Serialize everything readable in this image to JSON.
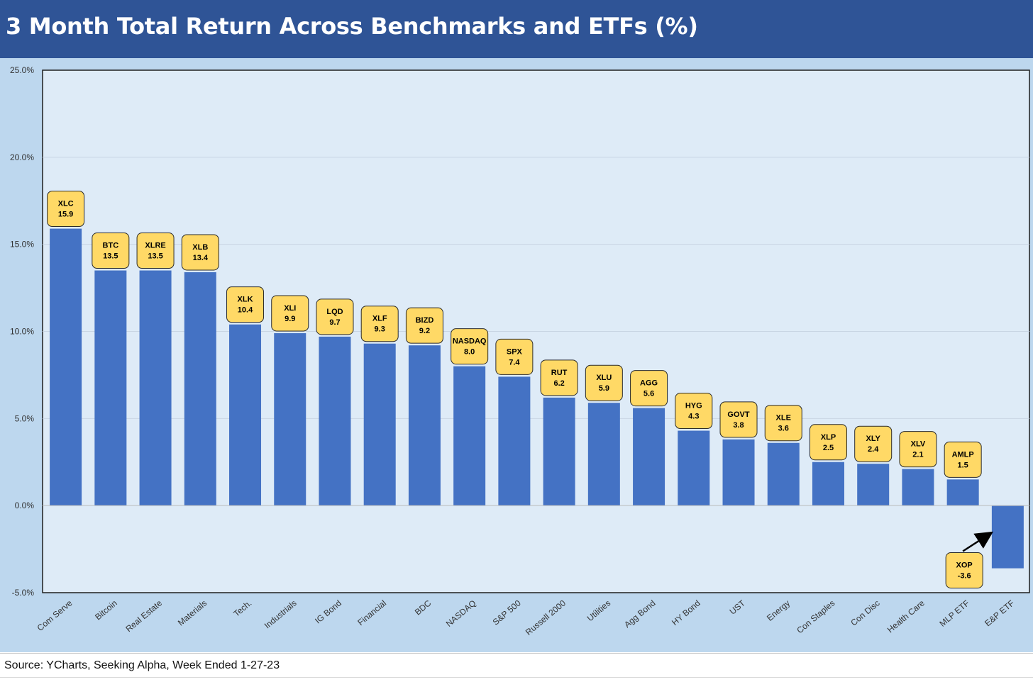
{
  "header": {
    "title": "3 Month Total Return Across Benchmarks and ETFs (%)"
  },
  "footer": {
    "source": "Source: YCharts, Seeking Alpha, Week Ended 1-27-23"
  },
  "colors": {
    "header": "#2f5496",
    "bar": "#4472c4",
    "label_box": "#ffd966",
    "plot_bg": "#deebf7",
    "outer_bg": "#bdd7ee"
  },
  "chart_data": {
    "type": "bar",
    "title": "3 Month Total Return Across Benchmarks and ETFs (%)",
    "categories": [
      "Com Serve",
      "Bitcoin",
      "Real Estate",
      "Materials",
      "Tech.",
      "Industrials",
      "IG Bond",
      "Financial",
      "BDC",
      "NASDAQ",
      "S&P 500",
      "Russell 2000",
      "Utilities",
      "Agg Bond",
      "HY Bond",
      "UST",
      "Energy",
      "Con Staples",
      "Con Disc",
      "Health Care",
      "MLP ETF",
      "E&P ETF"
    ],
    "tickers": [
      "XLC",
      "BTC",
      "XLRE",
      "XLB",
      "XLK",
      "XLI",
      "LQD",
      "XLF",
      "BIZD",
      "NASDAQ",
      "SPX",
      "RUT",
      "XLU",
      "AGG",
      "HYG",
      "GOVT",
      "XLE",
      "XLP",
      "XLY",
      "XLV",
      "AMLP",
      "XOP"
    ],
    "value_labels": [
      "15.9",
      "13.5",
      "13.5",
      "13.4",
      "10.4",
      "9.9",
      "9.7",
      "9.3",
      "9.2",
      "8.0",
      "7.4",
      "6.2",
      "5.9",
      "5.6",
      "4.3",
      "3.8",
      "3.6",
      "2.5",
      "2.4",
      "2.1",
      "1.5",
      "-3.6"
    ],
    "values": [
      15.9,
      13.5,
      13.5,
      13.4,
      10.4,
      9.9,
      9.7,
      9.3,
      9.2,
      8.0,
      7.4,
      6.2,
      5.9,
      5.6,
      4.3,
      3.8,
      3.6,
      2.5,
      2.4,
      2.1,
      1.5,
      -3.6
    ],
    "ylim": [
      -5,
      25
    ],
    "yticks": [
      25,
      20,
      15,
      10,
      5,
      0,
      -5
    ],
    "ytick_labels": [
      "25.0%",
      "20.0%",
      "15.0%",
      "10.0%",
      "5.0%",
      "0.0%",
      "-5.0%"
    ],
    "xlabel": "",
    "ylabel": "",
    "grid": true,
    "legend": "none",
    "annotation": "arrow from XOP label to E&P ETF bar"
  }
}
